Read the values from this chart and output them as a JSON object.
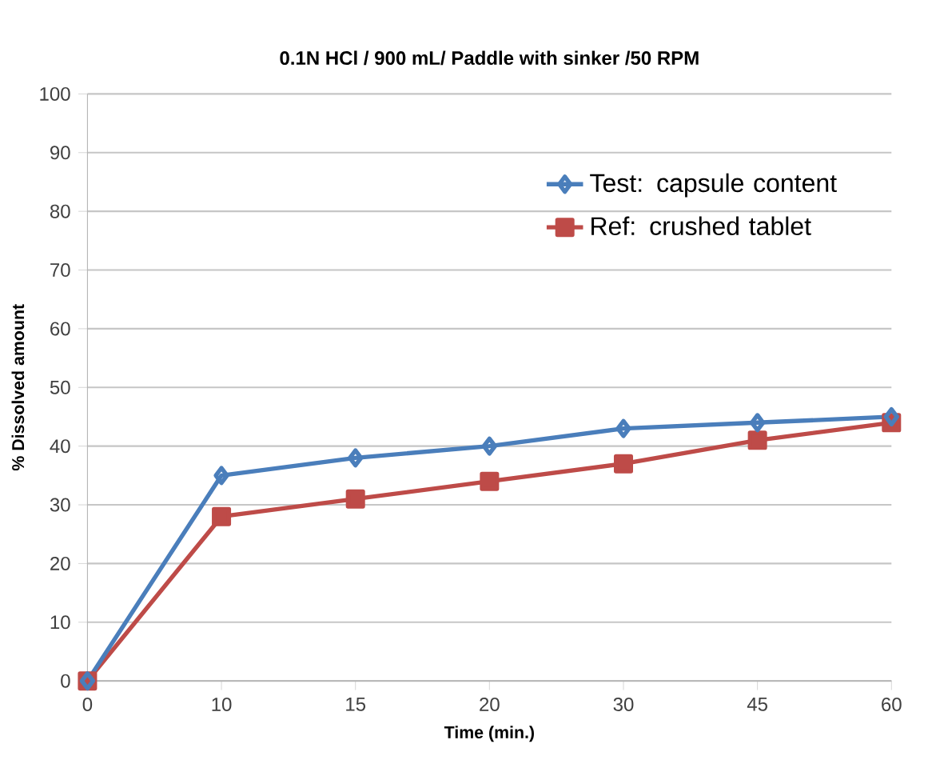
{
  "chart_data": {
    "type": "line",
    "title": "0.1N HCl / 900 mL/ Paddle with sinker /50 RPM",
    "xlabel": "Time (min.)",
    "ylabel": "% Dissolved amount",
    "categories": [
      "0",
      "10",
      "15",
      "20",
      "30",
      "45",
      "60"
    ],
    "series": [
      {
        "name": "Test: capsule content",
        "color": "#4a7ebb",
        "marker": "diamond",
        "values": [
          0,
          35,
          38,
          40,
          43,
          44,
          45
        ]
      },
      {
        "name": "Ref: crushed tablet",
        "color": "#be4b48",
        "marker": "square",
        "values": [
          0,
          28,
          31,
          34,
          37,
          41,
          44
        ]
      }
    ],
    "ylim": [
      0,
      100
    ],
    "yticks": [
      0,
      10,
      20,
      30,
      40,
      50,
      60,
      70,
      80,
      90,
      100
    ],
    "grid": "y",
    "legend": "top right",
    "line_style": "solid"
  }
}
